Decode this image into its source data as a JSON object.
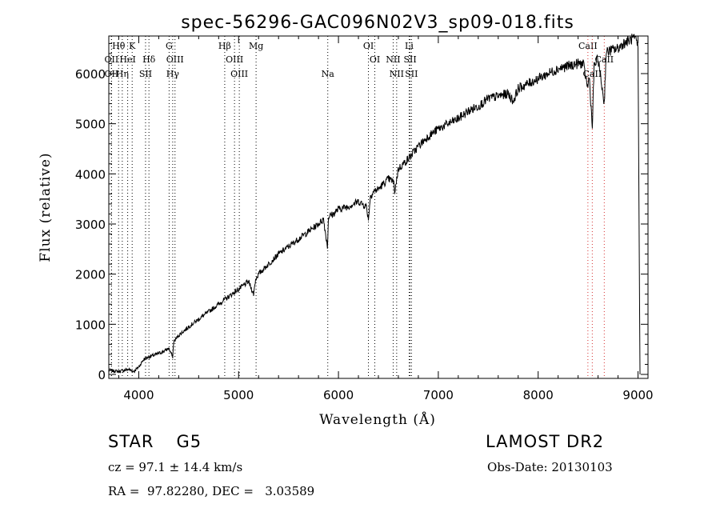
{
  "chart_data": {
    "type": "line",
    "title": "spec-56296-GAC096N02V3_sp09-018.fits",
    "xlabel": "Wavelength (Å)",
    "ylabel": "Flux (relative)",
    "xlim": [
      3700,
      9100
    ],
    "ylim": [
      -80,
      6750
    ],
    "xticks": [
      4000,
      5000,
      6000,
      7000,
      8000,
      9000
    ],
    "yticks": [
      0,
      1000,
      2000,
      3000,
      4000,
      5000,
      6000
    ],
    "xtick_labels": [
      "4000",
      "5000",
      "6000",
      "7000",
      "8000",
      "9000"
    ],
    "ytick_labels": [
      "0",
      "1000",
      "2000",
      "3000",
      "4000",
      "5000",
      "6000"
    ],
    "grid": false,
    "series": [
      {
        "color": "#000000",
        "x": [
          3700,
          3800,
          3900,
          3950,
          4000,
          4050,
          4100,
          4150,
          4200,
          4250,
          4300,
          4340,
          4350,
          4400,
          4500,
          4600,
          4700,
          4800,
          4850,
          4900,
          5000,
          5100,
          5150,
          5170,
          5200,
          5300,
          5400,
          5500,
          5600,
          5700,
          5800,
          5850,
          5890,
          5900,
          5950,
          6000,
          6100,
          6200,
          6280,
          6300,
          6320,
          6350,
          6400,
          6500,
          6550,
          6563,
          6600,
          6700,
          6800,
          6900,
          7000,
          7100,
          7200,
          7300,
          7400,
          7500,
          7600,
          7700,
          7750,
          7800,
          7900,
          8000,
          8100,
          8200,
          8300,
          8400,
          8450,
          8498,
          8510,
          8542,
          8560,
          8600,
          8662,
          8680,
          8700,
          8800,
          8850,
          8900,
          8950,
          8980,
          9000,
          9020
        ],
        "y": [
          80,
          60,
          100,
          60,
          150,
          300,
          350,
          380,
          420,
          460,
          520,
          350,
          650,
          780,
          950,
          1100,
          1250,
          1400,
          1480,
          1550,
          1700,
          1850,
          1600,
          1900,
          2000,
          2200,
          2400,
          2550,
          2700,
          2850,
          3000,
          3100,
          2550,
          3150,
          3200,
          3300,
          3350,
          3450,
          3350,
          3100,
          3550,
          3650,
          3700,
          3900,
          3850,
          3650,
          4100,
          4300,
          4550,
          4750,
          4900,
          5000,
          5100,
          5250,
          5350,
          5500,
          5550,
          5600,
          5450,
          5700,
          5800,
          5900,
          6000,
          6100,
          6150,
          6200,
          6200,
          5700,
          6000,
          4900,
          6150,
          6300,
          5400,
          6400,
          6450,
          6500,
          6600,
          6650,
          6700,
          6650,
          6550,
          0
        ]
      }
    ],
    "line_markers": [
      {
        "label": "Hθ",
        "x": 3798,
        "row": 0,
        "color": "#000000"
      },
      {
        "label": "K",
        "x": 3934,
        "row": 0,
        "color": "#000000"
      },
      {
        "label": "G",
        "x": 4304,
        "row": 0,
        "color": "#000000"
      },
      {
        "label": "Hβ",
        "x": 4861,
        "row": 0,
        "color": "#000000"
      },
      {
        "label": "Mg",
        "x": 5175,
        "row": 0,
        "color": "#000000"
      },
      {
        "label": "OI",
        "x": 6300,
        "row": 0,
        "color": "#000000"
      },
      {
        "label": "Li",
        "x": 6708,
        "row": 0,
        "color": "#000000"
      },
      {
        "label": "CaII",
        "x": 8498,
        "row": 0,
        "color": "#d43030"
      },
      {
        "label": "OII",
        "x": 3727,
        "row": 1,
        "color": "#000000"
      },
      {
        "label": "HeI",
        "x": 3889,
        "row": 1,
        "color": "#000000"
      },
      {
        "label": "Hδ",
        "x": 4102,
        "row": 1,
        "color": "#000000"
      },
      {
        "label": "OIII",
        "x": 4363,
        "row": 1,
        "color": "#000000"
      },
      {
        "label": "OIII",
        "x": 4959,
        "row": 1,
        "color": "#000000"
      },
      {
        "label": "OI",
        "x": 6364,
        "row": 1,
        "color": "#000000"
      },
      {
        "label": "NII",
        "x": 6548,
        "row": 1,
        "color": "#000000"
      },
      {
        "label": "SII",
        "x": 6717,
        "row": 1,
        "color": "#000000"
      },
      {
        "label": "CaII",
        "x": 8662,
        "row": 1,
        "color": "#d43030"
      },
      {
        "label": "OII",
        "x": 3727,
        "row": 2,
        "color": "#000000"
      },
      {
        "label": "Hη",
        "x": 3835,
        "row": 2,
        "color": "#000000"
      },
      {
        "label": "SII",
        "x": 4068,
        "row": 2,
        "color": "#000000"
      },
      {
        "label": "Hγ",
        "x": 4340,
        "row": 2,
        "color": "#000000"
      },
      {
        "label": "OIII",
        "x": 5007,
        "row": 2,
        "color": "#000000"
      },
      {
        "label": "Na",
        "x": 5893,
        "row": 2,
        "color": "#000000"
      },
      {
        "label": "NII",
        "x": 6583,
        "row": 2,
        "color": "#000000"
      },
      {
        "label": "SII",
        "x": 6731,
        "row": 2,
        "color": "#000000"
      },
      {
        "label": "CaII",
        "x": 8542,
        "row": 2,
        "color": "#d43030"
      }
    ]
  },
  "info": {
    "star_class": "STAR",
    "spectral_type": "G5",
    "survey": "LAMOST DR2",
    "cz": "cz = 97.1 ± 14.4 km/s",
    "obs_date": "Obs-Date: 20130103",
    "coords": "RA =  97.82280, DEC =   3.03589"
  }
}
